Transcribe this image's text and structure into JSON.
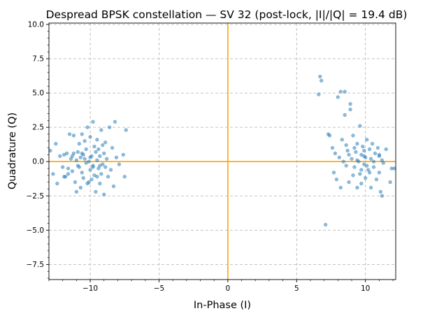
{
  "chart_data": {
    "type": "scatter",
    "title": "Despread BPSK constellation — SV 32 (post-lock, |I|/|Q| = 19.4 dB)",
    "xlabel": "In-Phase (I)",
    "ylabel": "Quadrature (Q)",
    "xlim": [
      -13.0,
      12.2
    ],
    "ylim": [
      -8.6,
      10.1
    ],
    "x_ticks": [
      -10,
      -5,
      0,
      5,
      10
    ],
    "x_tick_labels": [
      "−10",
      "−5",
      "0",
      "5",
      "10"
    ],
    "y_ticks": [
      -7.5,
      -5.0,
      -2.5,
      0.0,
      2.5,
      5.0,
      7.5,
      10.0
    ],
    "y_tick_labels": [
      "−7.5",
      "−5.0",
      "−2.5",
      "0.0",
      "2.5",
      "5.0",
      "7.5",
      "10.0"
    ],
    "grid": true,
    "colors": {
      "points": "#1f77b4",
      "reference_lines": "#ffa500",
      "grid": "#b0b0b0"
    },
    "reference_lines": {
      "horizontal_y": 0,
      "vertical_x": 0
    },
    "series": [
      {
        "points": [
          [
            -12.9,
            0.8
          ],
          [
            -12.7,
            -0.9
          ],
          [
            -12.5,
            1.3
          ],
          [
            -12.4,
            -1.6
          ],
          [
            -12.2,
            0.4
          ],
          [
            -12.0,
            -0.4
          ],
          [
            -11.9,
            0.5
          ],
          [
            -11.8,
            -1.1
          ],
          [
            -11.7,
            0.6
          ],
          [
            -11.6,
            -0.9
          ],
          [
            -11.5,
            2.0
          ],
          [
            -11.4,
            0.2
          ],
          [
            -11.3,
            -0.7
          ],
          [
            -11.2,
            1.9
          ],
          [
            -11.2,
            0.6
          ],
          [
            -11.1,
            -1.5
          ],
          [
            -11.0,
            0.1
          ],
          [
            -11.0,
            -2.2
          ],
          [
            -10.9,
            0.7
          ],
          [
            -10.8,
            -0.4
          ],
          [
            -10.8,
            1.3
          ],
          [
            -10.7,
            -1.9
          ],
          [
            -10.7,
            0.3
          ],
          [
            -10.6,
            -0.8
          ],
          [
            -10.6,
            2.0
          ],
          [
            -10.5,
            0.5
          ],
          [
            -10.5,
            -1.2
          ],
          [
            -10.4,
            1.5
          ],
          [
            -10.3,
            -0.1
          ],
          [
            -10.3,
            0.9
          ],
          [
            -10.2,
            -1.6
          ],
          [
            -10.2,
            2.5
          ],
          [
            -10.1,
            0.0
          ],
          [
            -10.0,
            -0.6
          ],
          [
            -10.0,
            1.8
          ],
          [
            -9.9,
            -1.3
          ],
          [
            -9.9,
            0.4
          ],
          [
            -9.8,
            2.9
          ],
          [
            -9.8,
            -0.3
          ],
          [
            -9.7,
            1.1
          ],
          [
            -9.7,
            -1.0
          ],
          [
            -9.6,
            0.7
          ],
          [
            -9.6,
            -2.2
          ],
          [
            -9.5,
            0.1
          ],
          [
            -9.5,
            1.6
          ],
          [
            -9.4,
            -0.5
          ],
          [
            -9.4,
            0.9
          ],
          [
            -9.3,
            -1.6
          ],
          [
            -9.3,
            0.4
          ],
          [
            -9.2,
            2.3
          ],
          [
            -9.2,
            -0.9
          ],
          [
            -9.1,
            1.2
          ],
          [
            -9.1,
            -0.2
          ],
          [
            -9.0,
            0.6
          ],
          [
            -9.0,
            -2.4
          ],
          [
            -8.9,
            -0.4
          ],
          [
            -8.9,
            1.4
          ],
          [
            -8.8,
            0.2
          ],
          [
            -8.7,
            -1.1
          ],
          [
            -8.6,
            2.5
          ],
          [
            -8.5,
            -0.6
          ],
          [
            -8.4,
            1.0
          ],
          [
            -8.3,
            -1.8
          ],
          [
            -8.2,
            2.9
          ],
          [
            -8.1,
            0.3
          ],
          [
            -7.9,
            -0.2
          ],
          [
            -7.6,
            0.5
          ],
          [
            -7.5,
            -1.1
          ],
          [
            -7.4,
            2.3
          ],
          [
            -11.9,
            -1.1
          ],
          [
            -10.9,
            -0.3
          ],
          [
            -10.4,
            0.2
          ],
          [
            -9.8,
            -0.4
          ],
          [
            -11.3,
            0.4
          ],
          [
            -10.1,
            -1.5
          ],
          [
            -9.3,
            -0.3
          ],
          [
            -10.6,
            0.6
          ],
          [
            -11.6,
            -0.5
          ],
          [
            -10.0,
            0.3
          ],
          [
            -9.5,
            -1.1
          ],
          [
            6.6,
            4.9
          ],
          [
            6.7,
            6.2
          ],
          [
            6.8,
            5.9
          ],
          [
            7.1,
            -4.6
          ],
          [
            7.3,
            2.0
          ],
          [
            7.4,
            1.9
          ],
          [
            7.6,
            1.0
          ],
          [
            7.7,
            -0.8
          ],
          [
            7.8,
            0.6
          ],
          [
            7.9,
            -1.3
          ],
          [
            8.0,
            4.7
          ],
          [
            8.1,
            0.3
          ],
          [
            8.2,
            5.1
          ],
          [
            8.2,
            -1.9
          ],
          [
            8.3,
            1.6
          ],
          [
            8.4,
            0.0
          ],
          [
            8.5,
            5.1
          ],
          [
            8.5,
            3.4
          ],
          [
            8.6,
            -0.3
          ],
          [
            8.7,
            0.8
          ],
          [
            8.8,
            -1.5
          ],
          [
            8.9,
            4.2
          ],
          [
            8.9,
            3.8
          ],
          [
            9.0,
            0.2
          ],
          [
            9.1,
            -1.0
          ],
          [
            9.1,
            1.9
          ],
          [
            9.2,
            -0.4
          ],
          [
            9.3,
            0.7
          ],
          [
            9.4,
            -1.9
          ],
          [
            9.4,
            1.3
          ],
          [
            9.5,
            0.0
          ],
          [
            9.6,
            2.6
          ],
          [
            9.6,
            -0.9
          ],
          [
            9.7,
            0.5
          ],
          [
            9.7,
            -1.6
          ],
          [
            9.8,
            1.1
          ],
          [
            9.9,
            -0.2
          ],
          [
            9.9,
            0.8
          ],
          [
            10.0,
            -1.2
          ],
          [
            10.0,
            0.3
          ],
          [
            10.1,
            1.6
          ],
          [
            10.2,
            -0.6
          ],
          [
            10.3,
            0.9
          ],
          [
            10.4,
            -1.9
          ],
          [
            10.4,
            0.2
          ],
          [
            10.5,
            1.3
          ],
          [
            10.6,
            -0.4
          ],
          [
            10.7,
            0.6
          ],
          [
            10.8,
            -1.3
          ],
          [
            10.9,
            1.0
          ],
          [
            11.0,
            -0.8
          ],
          [
            11.0,
            0.4
          ],
          [
            11.1,
            -2.2
          ],
          [
            11.2,
            -2.5
          ],
          [
            11.2,
            0.1
          ],
          [
            11.3,
            -0.1
          ],
          [
            11.5,
            0.9
          ],
          [
            11.8,
            -1.5
          ],
          [
            11.9,
            -0.5
          ],
          [
            12.1,
            -0.5
          ],
          [
            9.2,
            1.0
          ],
          [
            10.1,
            -0.3
          ],
          [
            8.8,
            0.5
          ],
          [
            9.7,
            -0.6
          ],
          [
            10.6,
            0.0
          ],
          [
            9.4,
            0.1
          ],
          [
            10.3,
            -0.8
          ],
          [
            8.6,
            1.2
          ],
          [
            11.0,
            0.5
          ],
          [
            9.9,
            0.4
          ]
        ]
      }
    ]
  }
}
